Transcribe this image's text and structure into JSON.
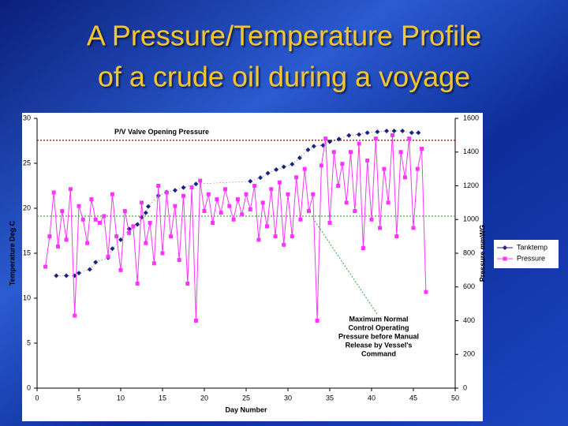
{
  "chart_data": {
    "type": "line",
    "title": [
      "A Pressure/Temperature Profile",
      "of a crude oil during a voyage"
    ],
    "xlabel": "Day Number",
    "ylabel": "Temperature Deg C",
    "y2label": "Pressure mmWG",
    "xlim": [
      0,
      50
    ],
    "xticks": [
      0,
      5,
      10,
      15,
      20,
      25,
      30,
      35,
      40,
      45,
      50
    ],
    "ylim": [
      0,
      30
    ],
    "yticks": [
      0,
      5,
      10,
      15,
      20,
      25,
      30
    ],
    "y2lim": [
      0,
      1600
    ],
    "y2ticks": [
      0,
      200,
      400,
      600,
      800,
      1000,
      1200,
      1400,
      1600
    ],
    "legend": "right",
    "reference_lines": [
      {
        "label": [
          "P/V Valve Opening Pressure"
        ],
        "value": 1470,
        "color": "#cc0000",
        "axis": "y2"
      },
      {
        "label": [
          "Maximum Normal",
          "Control Operating",
          "Pressure before Manual",
          "Release by Vessel's",
          "Command"
        ],
        "value": 1020,
        "color": "#33aa33",
        "axis": "y2"
      }
    ],
    "series": [
      {
        "name": "Tanktemp",
        "color": "#1a237e",
        "marker": "diamond",
        "axis": "y",
        "x": [
          2.3,
          3.5,
          4.5,
          5,
          6.3,
          7,
          8.5,
          9,
          10,
          11,
          12,
          12.5,
          13,
          13.3,
          14.5,
          15.5,
          16.5,
          17.5,
          19,
          25.5,
          26.7,
          27.6,
          28.6,
          29.5,
          30.5,
          31.4,
          32.4,
          33.1,
          34.2,
          35,
          36.1,
          37.3,
          38.5,
          39.5,
          40.7,
          41.8,
          42.7,
          43.7,
          44.8,
          45.6
        ],
        "values": [
          12.5,
          12.5,
          12.5,
          12.8,
          13.2,
          14,
          14.5,
          15.5,
          16.5,
          17.7,
          18.2,
          19,
          19.5,
          20.2,
          21.4,
          21.8,
          22,
          22.3,
          22.7,
          23,
          23.4,
          23.9,
          24.3,
          24.6,
          24.9,
          25.6,
          26.5,
          26.9,
          27,
          27.4,
          27.7,
          28.1,
          28.2,
          28.4,
          28.5,
          28.6,
          28.6,
          28.6,
          28.4,
          28.4
        ]
      },
      {
        "name": "Pressure",
        "color": "#ff33ff",
        "marker": "square",
        "axis": "y2",
        "x": [
          1,
          1.5,
          2,
          2.5,
          3,
          3.5,
          4,
          4.5,
          5,
          5.5,
          6,
          6.5,
          7,
          7.5,
          8,
          8.5,
          9,
          9.5,
          10,
          10.5,
          11,
          11.5,
          12,
          12.5,
          13,
          13.5,
          14,
          14.5,
          15,
          15.5,
          16,
          16.5,
          17,
          17.5,
          18,
          18.5,
          19,
          19.5,
          20,
          20.5,
          21,
          21.5,
          22,
          22.5,
          23,
          23.5,
          24,
          24.5,
          25,
          25.5,
          26,
          26.5,
          27,
          27.5,
          28,
          28.5,
          29,
          29.5,
          30,
          30.5,
          31,
          31.5,
          32,
          32.5,
          33,
          33.5,
          34,
          34.5,
          35,
          35.5,
          36,
          36.5,
          37,
          37.5,
          38,
          38.5,
          39,
          39.5,
          40,
          40.5,
          41,
          41.5,
          42,
          42.5,
          43,
          43.5,
          44,
          44.5,
          45,
          45.5,
          46,
          46.5
        ],
        "values": [
          720,
          900,
          1160,
          840,
          1050,
          880,
          1180,
          430,
          1080,
          1000,
          860,
          1120,
          1000,
          980,
          1020,
          780,
          1150,
          900,
          700,
          1050,
          920,
          960,
          620,
          1100,
          860,
          980,
          740,
          1200,
          800,
          1160,
          900,
          1080,
          760,
          1140,
          620,
          1190,
          400,
          1230,
          1050,
          1150,
          980,
          1120,
          1040,
          1180,
          1080,
          1000,
          1120,
          1030,
          1150,
          1060,
          1200,
          880,
          1100,
          960,
          1180,
          900,
          1220,
          850,
          1150,
          900,
          1250,
          1000,
          1300,
          1050,
          1150,
          400,
          1320,
          1480,
          980,
          1400,
          1200,
          1330,
          1100,
          1400,
          1050,
          1450,
          830,
          1350,
          1000,
          1480,
          950,
          1300,
          1100,
          1500,
          900,
          1400,
          1250,
          1480,
          950,
          1300,
          1420,
          570
        ]
      }
    ]
  }
}
